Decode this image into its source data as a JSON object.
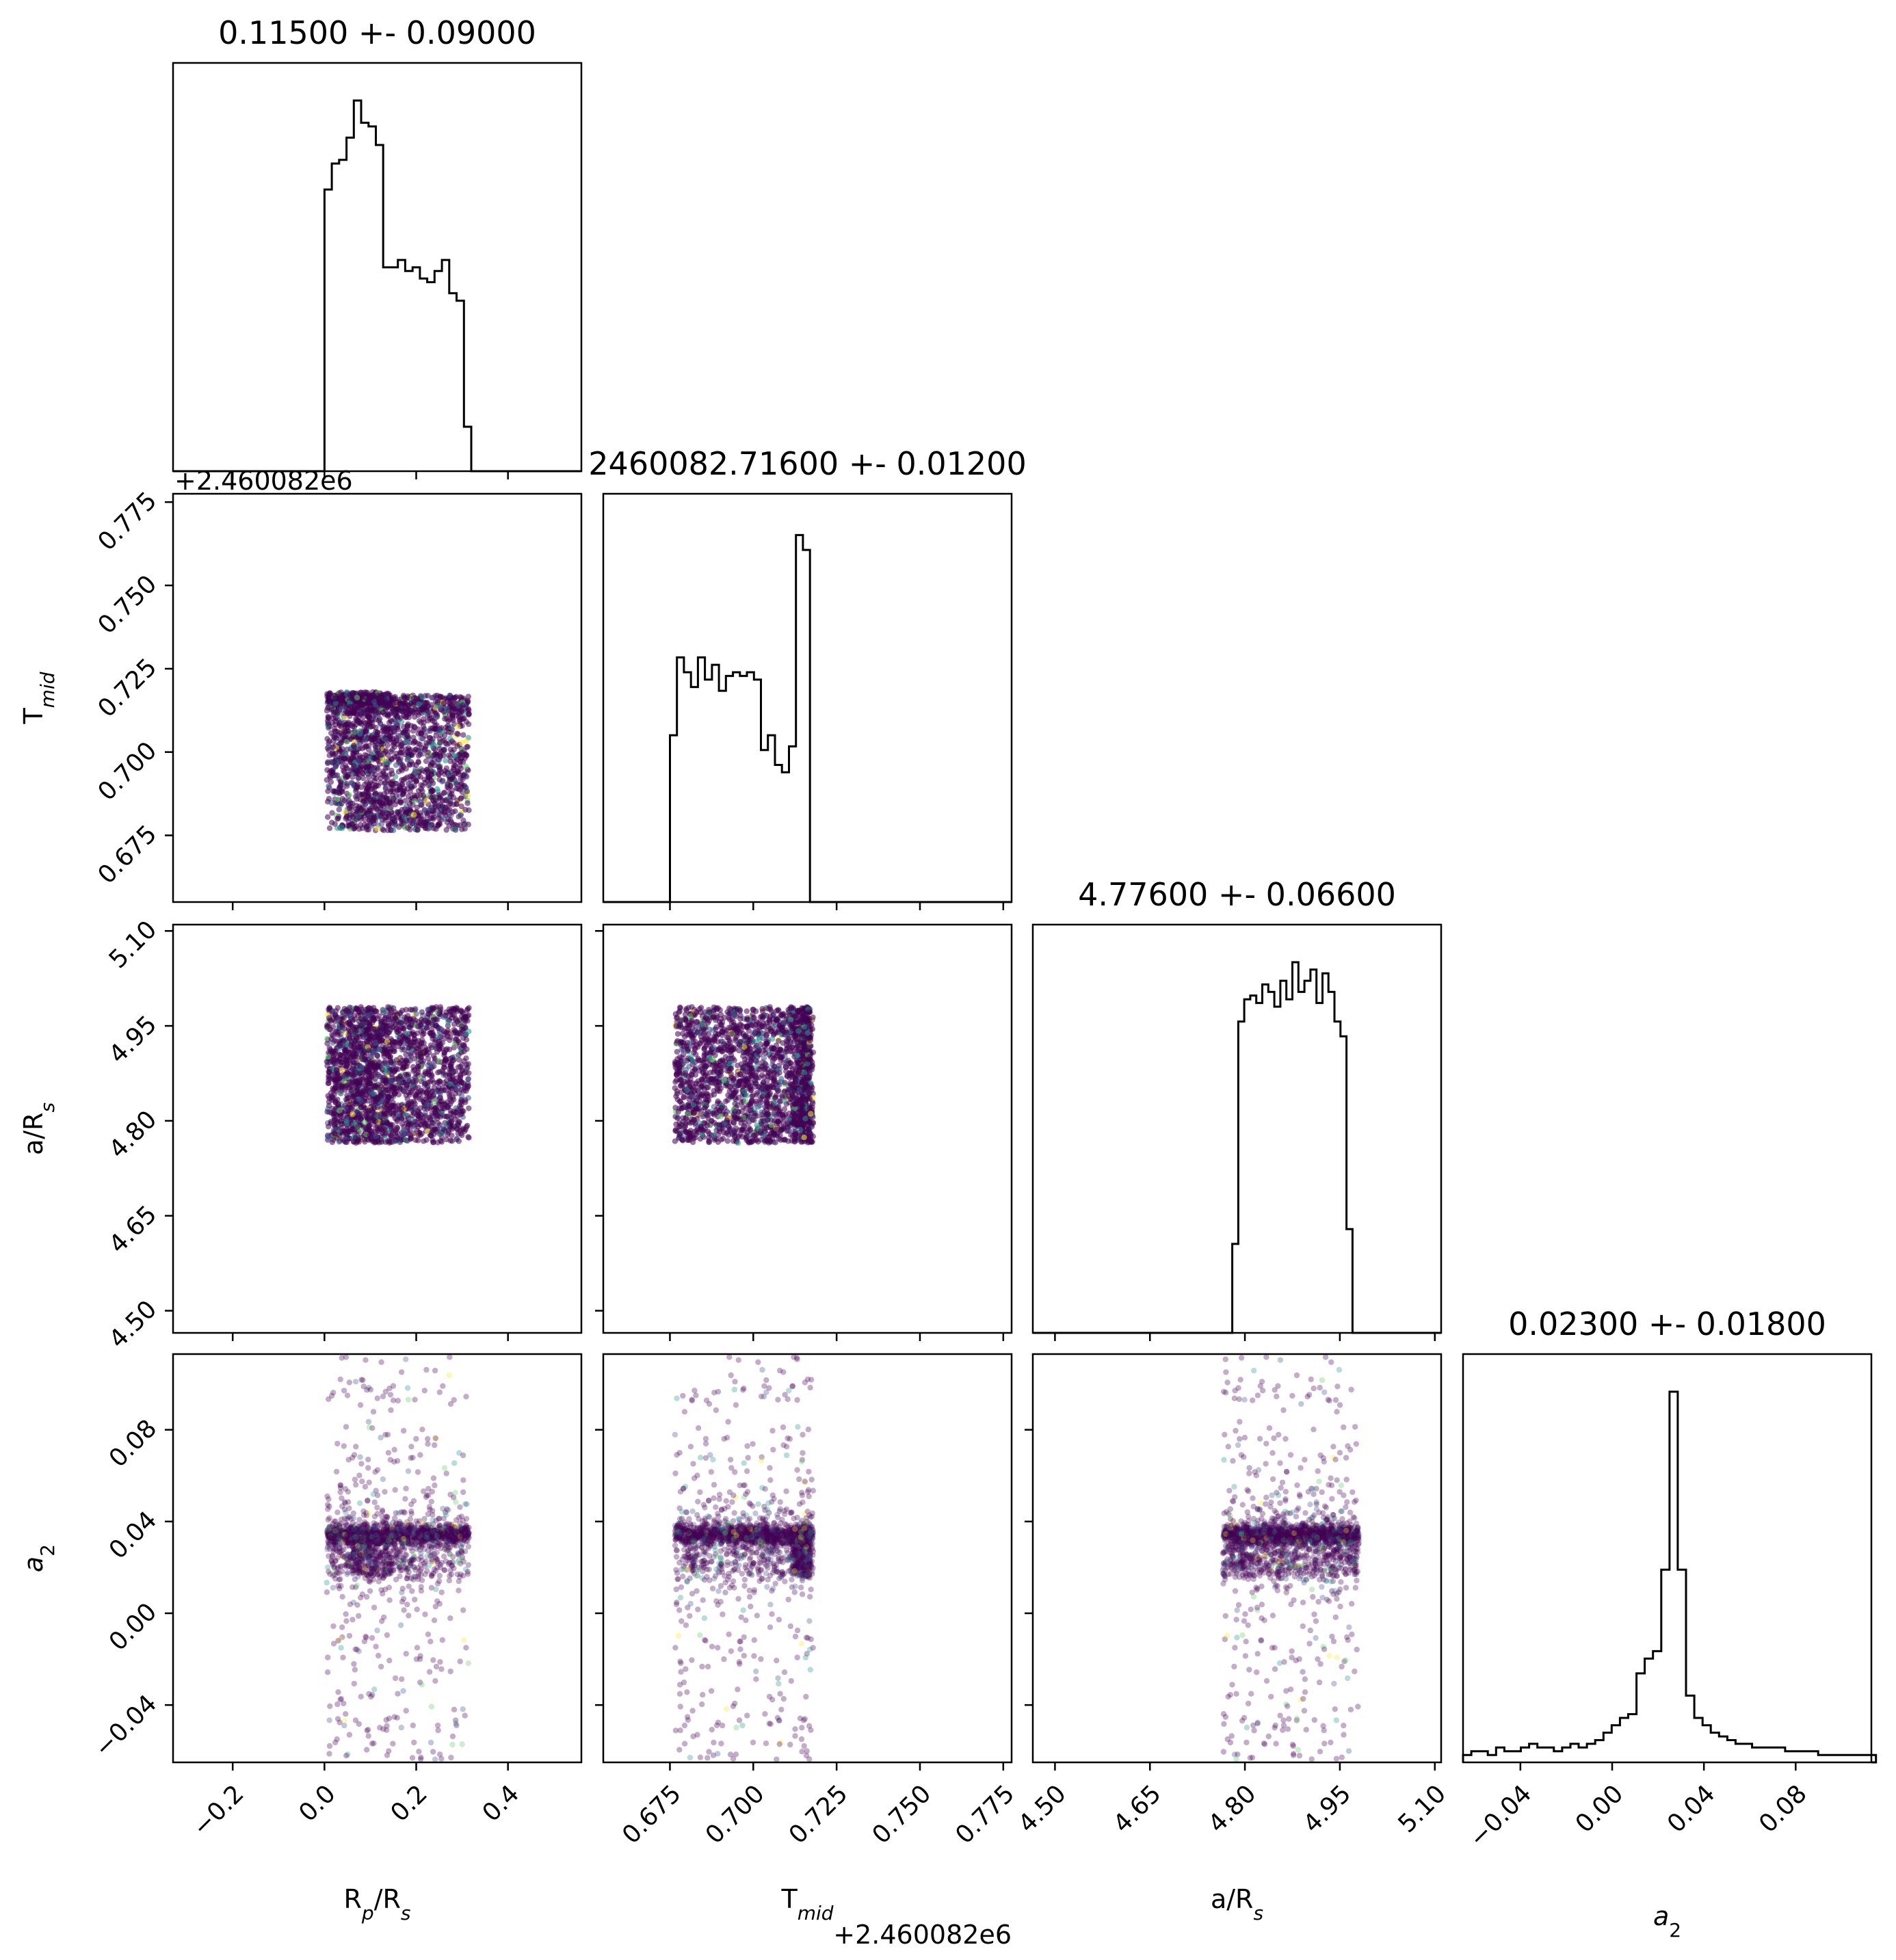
{
  "chart_data": {
    "type": "corner",
    "parameters": [
      {
        "key": "rprs",
        "label": "R",
        "label_sub": "p",
        "label_tail": "/R",
        "label_tail_sub": "s",
        "range": [
          -0.33,
          0.56
        ],
        "ticks": [
          "−0.2",
          "0.0",
          "0.2",
          "0.4"
        ],
        "tick_values": [
          -0.2,
          0.0,
          0.2,
          0.4
        ]
      },
      {
        "key": "tmid",
        "label": "T",
        "label_sub": "mid",
        "label_tail": "",
        "label_tail_sub": "",
        "range": [
          0.655,
          0.7775
        ],
        "ticks": [
          "0.675",
          "0.700",
          "0.725",
          "0.750",
          "0.775"
        ],
        "tick_values": [
          0.675,
          0.7,
          0.725,
          0.75,
          0.775
        ],
        "offset": "+2.460082e6"
      },
      {
        "key": "ars",
        "label": "a/R",
        "label_sub": "",
        "label_tail": "",
        "label_tail_sub": "s",
        "range": [
          4.465,
          5.11
        ],
        "ticks": [
          "4.50",
          "4.65",
          "4.80",
          "4.95",
          "5.10"
        ],
        "tick_values": [
          4.5,
          4.65,
          4.8,
          4.95,
          5.1
        ]
      },
      {
        "key": "a2",
        "label": "a",
        "label_sub": "2",
        "label_tail": "",
        "label_tail_sub": "",
        "range": [
          -0.065,
          0.113
        ],
        "ticks": [
          "−0.04",
          "0.00",
          "0.04",
          "0.08"
        ],
        "tick_values": [
          -0.04,
          0.0,
          0.04,
          0.08
        ]
      }
    ],
    "titles": [
      "0.11500 +- 0.09000",
      "2460082.71600 +- 0.01200",
      "4.77600 +- 0.06600",
      "0.02300 +- 0.01800"
    ],
    "histograms": [
      {
        "edges_start": 0.0,
        "bin_width": 0.016,
        "counts": [
          0.76,
          0.83,
          0.84,
          0.9,
          1.0,
          0.94,
          0.93,
          0.88,
          0.55,
          0.55,
          0.57,
          0.54,
          0.55,
          0.52,
          0.51,
          0.54,
          0.57,
          0.48,
          0.46,
          0.12,
          0.0
        ]
      },
      {
        "edges_start": 0.675,
        "bin_width": 0.0021,
        "counts": [
          0.45,
          0.66,
          0.62,
          0.58,
          0.66,
          0.6,
          0.64,
          0.57,
          0.61,
          0.62,
          0.61,
          0.62,
          0.6,
          0.41,
          0.45,
          0.37,
          0.35,
          0.42,
          0.99,
          0.95,
          0.0
        ]
      },
      {
        "edges_start": 4.78,
        "bin_width": 0.0095,
        "counts": [
          0.24,
          0.84,
          0.9,
          0.91,
          0.89,
          0.94,
          0.92,
          0.88,
          0.95,
          0.9,
          1.0,
          0.92,
          0.95,
          0.98,
          0.89,
          0.97,
          0.92,
          0.84,
          0.8,
          0.28,
          0.0
        ]
      },
      {
        "edges_start": -0.065,
        "bin_width": 0.0036,
        "counts": [
          0.02,
          0.03,
          0.03,
          0.02,
          0.04,
          0.03,
          0.03,
          0.04,
          0.05,
          0.04,
          0.04,
          0.03,
          0.04,
          0.05,
          0.04,
          0.05,
          0.06,
          0.08,
          0.1,
          0.12,
          0.13,
          0.24,
          0.28,
          0.3,
          0.52,
          1.0,
          0.52,
          0.18,
          0.12,
          0.1,
          0.08,
          0.07,
          0.06,
          0.05,
          0.05,
          0.04,
          0.04,
          0.04,
          0.04,
          0.03,
          0.03,
          0.03,
          0.03,
          0.02,
          0.02,
          0.02,
          0.02,
          0.02,
          0.02,
          0.02
        ]
      }
    ],
    "scatter_colors": {
      "dark": "#440154",
      "mid": "#3b528b",
      "teal": "#21918c",
      "green": "#5ec962",
      "yellow": "#fde725"
    }
  }
}
